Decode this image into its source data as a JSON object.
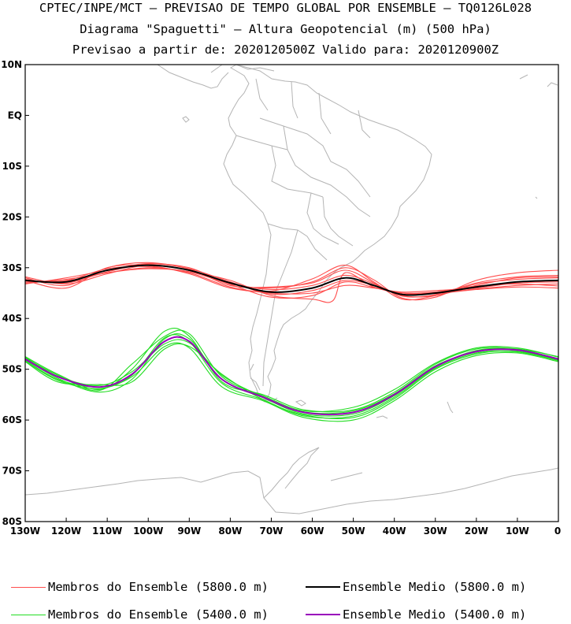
{
  "header": {
    "line1": "CPTEC/INPE/MCT – PREVISAO DE TEMPO GLOBAL POR ENSEMBLE – TQ0126L028",
    "line2": "Diagrama \"Spaguetti\" – Altura Geopotencial (m) (500 hPa)",
    "line3": "Previsao a partir de: 2020120500Z  Valido para: 2020120900Z"
  },
  "map": {
    "lon_range": [
      -130,
      0
    ],
    "lat_range": [
      -80,
      10
    ],
    "lat_ticks": [
      "10N",
      "EQ",
      "10S",
      "20S",
      "30S",
      "40S",
      "50S",
      "60S",
      "70S",
      "80S"
    ],
    "lat_tick_values": [
      10,
      0,
      -10,
      -20,
      -30,
      -40,
      -50,
      -60,
      -70,
      -80
    ],
    "lon_ticks": [
      "130W",
      "120W",
      "110W",
      "100W",
      "90W",
      "80W",
      "70W",
      "60W",
      "50W",
      "40W",
      "30W",
      "20W",
      "10W",
      "0"
    ],
    "lon_tick_values": [
      -130,
      -120,
      -110,
      -100,
      -90,
      -80,
      -70,
      -60,
      -50,
      -40,
      -30,
      -20,
      -10,
      0
    ],
    "colors": {
      "members_5800": "#ff4d4d",
      "mean_5800": "#000000",
      "members_5400": "#22dd22",
      "mean_5400": "#9900bb",
      "coast": "#b4b4b4"
    },
    "mean_5800_path": [
      [
        -130,
        -32.5
      ],
      [
        -120,
        -32.8
      ],
      [
        -110,
        -30.5
      ],
      [
        -100,
        -29.5
      ],
      [
        -90,
        -30.5
      ],
      [
        -80,
        -33
      ],
      [
        -70,
        -34.8
      ],
      [
        -60,
        -34
      ],
      [
        -52,
        -32
      ],
      [
        -45,
        -33.5
      ],
      [
        -38,
        -35.3
      ],
      [
        -30,
        -35
      ],
      [
        -20,
        -33.8
      ],
      [
        -10,
        -32.8
      ],
      [
        0,
        -32.5
      ]
    ],
    "mean_5400_path": [
      [
        -130,
        -48
      ],
      [
        -122,
        -51.5
      ],
      [
        -112,
        -53.5
      ],
      [
        -104,
        -51
      ],
      [
        -96,
        -44.5
      ],
      [
        -90,
        -44.5
      ],
      [
        -82,
        -52
      ],
      [
        -72,
        -55.5
      ],
      [
        -62,
        -58.5
      ],
      [
        -50,
        -58.5
      ],
      [
        -40,
        -55
      ],
      [
        -30,
        -49.5
      ],
      [
        -20,
        -46.5
      ],
      [
        -10,
        -46.2
      ],
      [
        0,
        -48
      ]
    ],
    "members_5800": [
      {
        "name": "m1",
        "pts": [
          [
            -130,
            -32
          ],
          [
            -120,
            -33.5
          ],
          [
            -110,
            -30
          ],
          [
            -100,
            -29
          ],
          [
            -90,
            -30.3
          ],
          [
            -80,
            -33.5
          ],
          [
            -70,
            -33.8
          ],
          [
            -60,
            -33
          ],
          [
            -52,
            -30.5
          ],
          [
            -45,
            -33
          ],
          [
            -38,
            -35.6
          ],
          [
            -30,
            -35.3
          ],
          [
            -20,
            -33
          ],
          [
            -10,
            -31.8
          ],
          [
            0,
            -31.5
          ]
        ]
      },
      {
        "name": "m2",
        "pts": [
          [
            -130,
            -33
          ],
          [
            -120,
            -32.3
          ],
          [
            -110,
            -31
          ],
          [
            -100,
            -30
          ],
          [
            -90,
            -30.8
          ],
          [
            -80,
            -32.5
          ],
          [
            -70,
            -35.5
          ],
          [
            -60,
            -36.2
          ],
          [
            -55,
            -36.5
          ],
          [
            -52,
            -31
          ],
          [
            -45,
            -33.8
          ],
          [
            -38,
            -35
          ],
          [
            -30,
            -34.8
          ],
          [
            -20,
            -34.2
          ],
          [
            -10,
            -33.5
          ],
          [
            0,
            -33.2
          ]
        ]
      },
      {
        "name": "m3",
        "pts": [
          [
            -130,
            -32.3
          ],
          [
            -120,
            -33
          ],
          [
            -110,
            -30.8
          ],
          [
            -100,
            -29.3
          ],
          [
            -90,
            -30
          ],
          [
            -80,
            -33.2
          ],
          [
            -70,
            -34
          ],
          [
            -60,
            -32.8
          ],
          [
            -52,
            -30
          ],
          [
            -45,
            -32.4
          ],
          [
            -38,
            -36
          ],
          [
            -30,
            -35.8
          ],
          [
            -20,
            -32.5
          ],
          [
            -10,
            -31
          ],
          [
            0,
            -30.5
          ]
        ]
      },
      {
        "name": "m4",
        "pts": [
          [
            -130,
            -32.8
          ],
          [
            -120,
            -32.5
          ],
          [
            -110,
            -30.2
          ],
          [
            -100,
            -29.8
          ],
          [
            -90,
            -31
          ],
          [
            -80,
            -33.8
          ],
          [
            -70,
            -35
          ],
          [
            -60,
            -35
          ],
          [
            -52,
            -33.5
          ],
          [
            -45,
            -34
          ],
          [
            -38,
            -34.8
          ],
          [
            -30,
            -34.5
          ],
          [
            -20,
            -34
          ],
          [
            -10,
            -33
          ],
          [
            0,
            -32.8
          ]
        ]
      },
      {
        "name": "m5",
        "pts": [
          [
            -130,
            -31.8
          ],
          [
            -120,
            -33.2
          ],
          [
            -110,
            -31.2
          ],
          [
            -100,
            -29.5
          ],
          [
            -90,
            -30.5
          ],
          [
            -80,
            -33
          ],
          [
            -70,
            -34.3
          ],
          [
            -60,
            -33.5
          ],
          [
            -52,
            -31.5
          ],
          [
            -45,
            -33.2
          ],
          [
            -38,
            -35.5
          ],
          [
            -30,
            -35.5
          ],
          [
            -20,
            -33.5
          ],
          [
            -10,
            -32
          ],
          [
            0,
            -31.8
          ]
        ]
      },
      {
        "name": "m6",
        "pts": [
          [
            -130,
            -33.2
          ],
          [
            -120,
            -32
          ],
          [
            -110,
            -30.5
          ],
          [
            -100,
            -29.2
          ],
          [
            -90,
            -30.2
          ],
          [
            -80,
            -32.8
          ],
          [
            -70,
            -35.2
          ],
          [
            -60,
            -34.5
          ],
          [
            -52,
            -32.5
          ],
          [
            -45,
            -33.5
          ],
          [
            -38,
            -35.2
          ],
          [
            -30,
            -34.8
          ],
          [
            -20,
            -33.6
          ],
          [
            -10,
            -33.2
          ],
          [
            0,
            -33.6
          ]
        ]
      },
      {
        "name": "m7",
        "pts": [
          [
            -130,
            -32.5
          ],
          [
            -120,
            -34
          ],
          [
            -110,
            -30
          ],
          [
            -100,
            -29.6
          ],
          [
            -90,
            -31.2
          ],
          [
            -80,
            -34
          ],
          [
            -70,
            -34.6
          ],
          [
            -60,
            -32.2
          ],
          [
            -52,
            -29.5
          ],
          [
            -45,
            -32.8
          ],
          [
            -38,
            -36.2
          ],
          [
            -30,
            -35.5
          ],
          [
            -20,
            -33.2
          ],
          [
            -10,
            -32.3
          ],
          [
            0,
            -32
          ]
        ]
      },
      {
        "name": "m8",
        "pts": [
          [
            -130,
            -32.6
          ],
          [
            -120,
            -32.6
          ],
          [
            -110,
            -31
          ],
          [
            -100,
            -30.2
          ],
          [
            -90,
            -30.8
          ],
          [
            -80,
            -33.3
          ],
          [
            -70,
            -35.8
          ],
          [
            -60,
            -35.5
          ],
          [
            -52,
            -32.8
          ],
          [
            -45,
            -33.9
          ],
          [
            -38,
            -35
          ],
          [
            -30,
            -35.1
          ],
          [
            -20,
            -34.3
          ],
          [
            -10,
            -33.8
          ],
          [
            0,
            -34
          ]
        ]
      }
    ],
    "members_5400": [
      {
        "name": "g1",
        "pts": [
          [
            -130,
            -47.5
          ],
          [
            -122,
            -51
          ],
          [
            -112,
            -54
          ],
          [
            -104,
            -50
          ],
          [
            -96,
            -42.5
          ],
          [
            -90,
            -43.5
          ],
          [
            -82,
            -52.5
          ],
          [
            -72,
            -55
          ],
          [
            -62,
            -58
          ],
          [
            -50,
            -58
          ],
          [
            -40,
            -54.5
          ],
          [
            -30,
            -49
          ],
          [
            -20,
            -46
          ],
          [
            -10,
            -46
          ],
          [
            0,
            -47.5
          ]
        ]
      },
      {
        "name": "g2",
        "pts": [
          [
            -130,
            -48.5
          ],
          [
            -122,
            -52.5
          ],
          [
            -112,
            -53
          ],
          [
            -104,
            -52.5
          ],
          [
            -96,
            -46
          ],
          [
            -90,
            -45.5
          ],
          [
            -82,
            -51
          ],
          [
            -72,
            -56
          ],
          [
            -62,
            -59
          ],
          [
            -50,
            -59.5
          ],
          [
            -40,
            -55.8
          ],
          [
            -30,
            -50
          ],
          [
            -20,
            -47
          ],
          [
            -10,
            -46.5
          ],
          [
            0,
            -48.2
          ]
        ]
      },
      {
        "name": "g3",
        "pts": [
          [
            -130,
            -47.8
          ],
          [
            -122,
            -51.2
          ],
          [
            -112,
            -54.2
          ],
          [
            -104,
            -49
          ],
          [
            -96,
            -43.5
          ],
          [
            -90,
            -43
          ],
          [
            -82,
            -51.5
          ],
          [
            -72,
            -55.2
          ],
          [
            -62,
            -58.2
          ],
          [
            -50,
            -57.5
          ],
          [
            -40,
            -54
          ],
          [
            -30,
            -48.8
          ],
          [
            -20,
            -45.8
          ],
          [
            -10,
            -45.8
          ],
          [
            0,
            -47.6
          ]
        ]
      },
      {
        "name": "g4",
        "pts": [
          [
            -130,
            -48.2
          ],
          [
            -122,
            -52
          ],
          [
            -112,
            -53.5
          ],
          [
            -104,
            -51.5
          ],
          [
            -96,
            -45.5
          ],
          [
            -90,
            -45.8
          ],
          [
            -82,
            -53.5
          ],
          [
            -72,
            -56.2
          ],
          [
            -62,
            -59.5
          ],
          [
            -50,
            -60
          ],
          [
            -40,
            -56.2
          ],
          [
            -30,
            -50.5
          ],
          [
            -20,
            -47.3
          ],
          [
            -10,
            -46.8
          ],
          [
            0,
            -48.5
          ]
        ]
      },
      {
        "name": "g5",
        "pts": [
          [
            -130,
            -48
          ],
          [
            -122,
            -51.8
          ],
          [
            -112,
            -54.5
          ],
          [
            -104,
            -52
          ],
          [
            -96,
            -44
          ],
          [
            -90,
            -44
          ],
          [
            -82,
            -52
          ],
          [
            -72,
            -55.6
          ],
          [
            -62,
            -58.8
          ],
          [
            -50,
            -58.8
          ],
          [
            -40,
            -55.2
          ],
          [
            -30,
            -49.6
          ],
          [
            -20,
            -46.3
          ],
          [
            -10,
            -46.1
          ],
          [
            0,
            -47.9
          ]
        ]
      },
      {
        "name": "g6",
        "pts": [
          [
            -130,
            -47.6
          ],
          [
            -122,
            -51.4
          ],
          [
            -112,
            -53.2
          ],
          [
            -104,
            -50.5
          ],
          [
            -96,
            -45
          ],
          [
            -90,
            -44.8
          ],
          [
            -82,
            -51.2
          ],
          [
            -72,
            -55.4
          ],
          [
            -62,
            -58.4
          ],
          [
            -50,
            -58.2
          ],
          [
            -40,
            -54.8
          ],
          [
            -30,
            -49.3
          ],
          [
            -20,
            -46.6
          ],
          [
            -10,
            -46.3
          ],
          [
            0,
            -48.1
          ]
        ]
      },
      {
        "name": "g7",
        "pts": [
          [
            -130,
            -48.4
          ],
          [
            -122,
            -52.2
          ],
          [
            -112,
            -53.8
          ],
          [
            -104,
            -51.2
          ],
          [
            -96,
            -43.8
          ],
          [
            -90,
            -44.6
          ],
          [
            -82,
            -52.8
          ],
          [
            -72,
            -56
          ],
          [
            -62,
            -59.2
          ],
          [
            -50,
            -59.2
          ],
          [
            -40,
            -55.5
          ],
          [
            -30,
            -49.8
          ],
          [
            -20,
            -46.8
          ],
          [
            -10,
            -46.6
          ],
          [
            0,
            -48.3
          ]
        ]
      }
    ]
  },
  "legend": {
    "items": [
      {
        "label": "Membros do Ensemble (5800.0 m)",
        "color": "#ff4d4d"
      },
      {
        "label": "Ensemble Medio (5800.0 m)",
        "color": "#000000"
      },
      {
        "label": "Membros do Ensemble (5400.0 m)",
        "color": "#22dd22"
      },
      {
        "label": "Ensemble Medio (5400.0 m)",
        "color": "#9900bb"
      }
    ]
  }
}
